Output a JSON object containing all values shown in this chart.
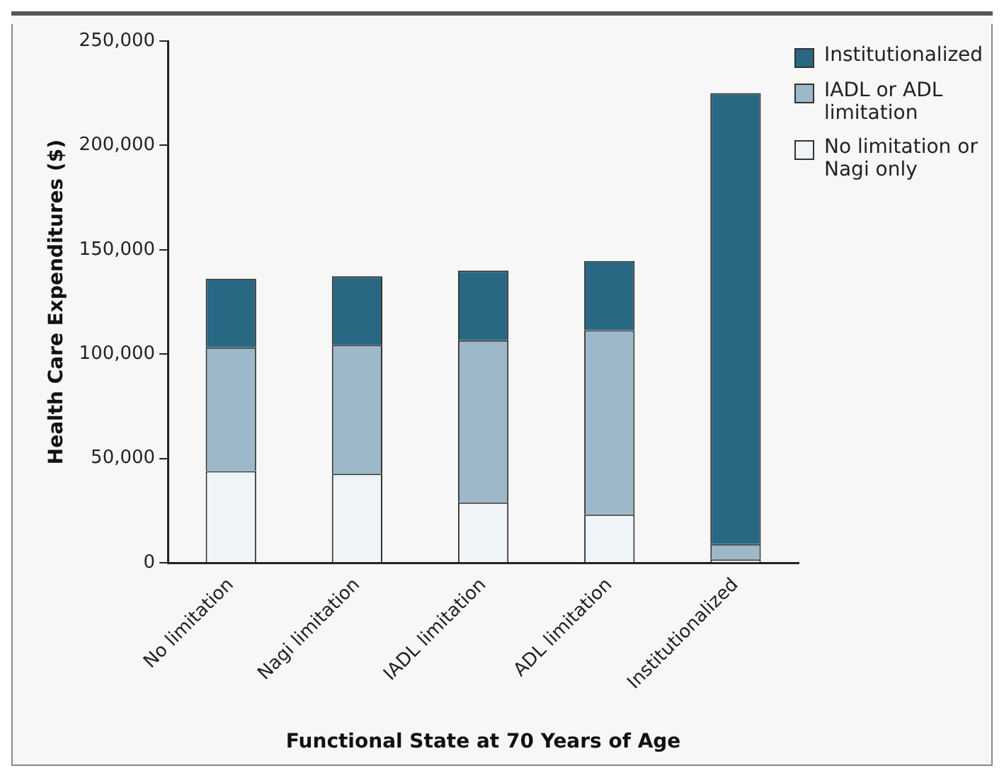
{
  "chart_data": {
    "type": "bar",
    "stacked": true,
    "xlabel": "Functional State at 70 Years of Age",
    "ylabel": "Health Care Expenditures ($)",
    "categories": [
      "No limitation",
      "Nagi limitation",
      "IADL limitation",
      "ADL limitation",
      "Institutionalized"
    ],
    "series": [
      {
        "name": "No limitation or Nagi only",
        "color": "#eef4f7",
        "values": [
          44000,
          42700,
          29000,
          23200,
          1700
        ]
      },
      {
        "name": "IADL or ADL limitation",
        "color": "#9db8c9",
        "values": [
          59200,
          61700,
          77600,
          88300,
          7300
        ]
      },
      {
        "name": "Institutionalized",
        "color": "#286882",
        "values": [
          32900,
          32900,
          33400,
          33100,
          216100
        ]
      }
    ],
    "ylim": [
      0,
      250000
    ],
    "yticks": [
      {
        "value": 0,
        "label": "0"
      },
      {
        "value": 50000,
        "label": "50,000"
      },
      {
        "value": 100000,
        "label": "100,000"
      },
      {
        "value": 150000,
        "label": "150,000"
      },
      {
        "value": 200000,
        "label": "200,000"
      },
      {
        "value": 250000,
        "label": "250,000"
      }
    ],
    "grid": false,
    "legend": "top right"
  }
}
